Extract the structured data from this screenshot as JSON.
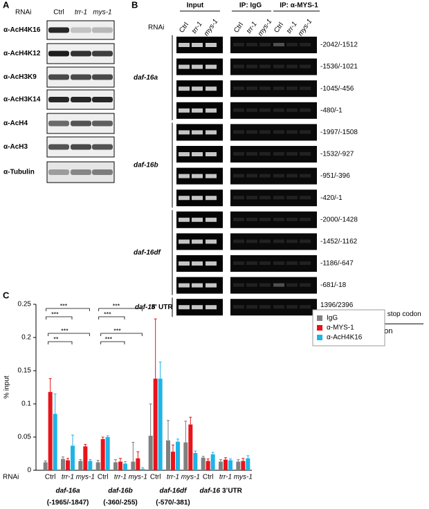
{
  "panel_a": {
    "label": "A",
    "rnai_label": "RNAi",
    "lanes": [
      "Ctrl",
      "trr-1",
      "mys-1"
    ],
    "antibodies": [
      "α-AcH4K16",
      "α-AcH4K12",
      "α-AcH3K9",
      "α-AcH3K14",
      "α-AcH4",
      "α-AcH3",
      "α-Tubulin"
    ]
  },
  "panel_b": {
    "label": "B",
    "headers": [
      "Input",
      "IP: IgG",
      "IP: α-MYS-1"
    ],
    "rnai_label": "RNAi",
    "lanes": [
      "Ctrl",
      "trr-1",
      "mys-1"
    ],
    "groups": [
      {
        "name": "daf-16a",
        "regions": [
          "-2042/-1512",
          "-1536/-1021",
          "-1045/-456",
          "-480/-1"
        ]
      },
      {
        "name": "daf-16b",
        "regions": [
          "-1997/-1508",
          "-1532/-927",
          "-951/-396",
          "-420/-1"
        ]
      },
      {
        "name": "daf-16df",
        "regions": [
          "-2000/-1428",
          "-1452/-1162",
          "-1186/-647",
          "-681/-18"
        ]
      }
    ],
    "utr": {
      "name": "daf-16",
      "suffix": "3’ UTR",
      "region": "1396/2396",
      "note": "downstream from the stop codon"
    },
    "footer": "PCR-amplified region"
  },
  "panel_label_c": "C",
  "chart_data": {
    "type": "bar",
    "ylabel": "% input",
    "xlabel": "RNAi",
    "categories": [
      "Ctrl",
      "trr-1",
      "mys-1",
      "Ctrl",
      "trr-1",
      "mys-1",
      "Ctrl",
      "trr-1",
      "mys-1",
      "Ctrl",
      "trr-1",
      "mys-1"
    ],
    "groups": [
      {
        "name": "daf-16a",
        "range": "(-1965/-1847)"
      },
      {
        "name": "daf-16b",
        "range": "(-360/-255)"
      },
      {
        "name": "daf-16df",
        "range": "(-570/-381)"
      },
      {
        "name": "daf-16",
        "suffix": "3’UTR"
      }
    ],
    "series": [
      {
        "name": "IgG",
        "color": "#808080",
        "values": [
          0.012,
          0.017,
          0.014,
          0.012,
          0.012,
          0.013,
          0.052,
          0.045,
          0.042,
          0.019,
          0.013,
          0.013
        ],
        "errors": [
          0.002,
          0.003,
          0.002,
          0.003,
          0.004,
          0.029,
          0.048,
          0.03,
          0.032,
          0.002,
          0.003,
          0.003
        ]
      },
      {
        "name": "α-MYS-1",
        "color": "#e8141b",
        "values": [
          0.118,
          0.015,
          0.036,
          0.047,
          0.013,
          0.018,
          0.138,
          0.028,
          0.069,
          0.014,
          0.016,
          0.014
        ],
        "errors": [
          0.02,
          0.003,
          0.003,
          0.003,
          0.005,
          0.01,
          0.09,
          0.01,
          0.011,
          0.003,
          0.003,
          0.004
        ]
      },
      {
        "name": "α-AcH4K16",
        "color": "#1fb4e8",
        "values": [
          0.085,
          0.037,
          0.014,
          0.05,
          0.01,
          0.002,
          0.138,
          0.043,
          0.026,
          0.024,
          0.015,
          0.018
        ],
        "errors": [
          0.03,
          0.016,
          0.002,
          0.002,
          0.003,
          0.002,
          0.025,
          0.004,
          0.003,
          0.003,
          0.002,
          0.004
        ]
      }
    ],
    "ylim": [
      0,
      0.25
    ],
    "yticks": [
      0,
      0.05,
      0.1,
      0.15,
      0.2,
      0.25
    ],
    "legend": "upper right",
    "significance": [
      "***",
      "***",
      "***",
      "**",
      "***",
      "***",
      "***",
      "***"
    ]
  }
}
